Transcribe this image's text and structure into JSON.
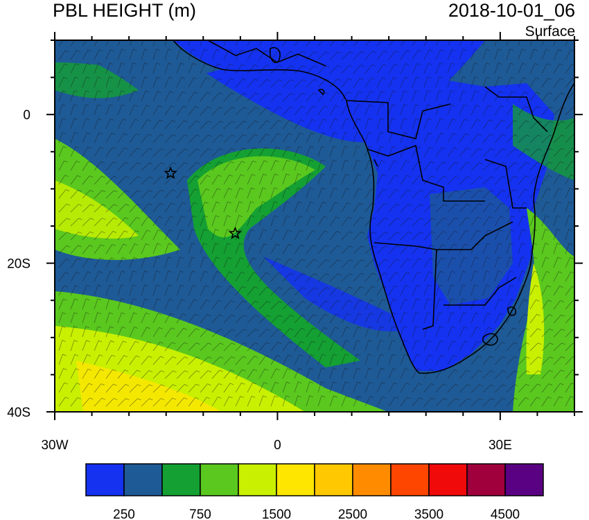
{
  "title_left": "PBL HEIGHT (m)",
  "title_right": "2018-10-01_06",
  "subtitle": "Surface",
  "map": {
    "lon_range": [
      -30,
      40
    ],
    "lat_range": [
      -40,
      10
    ],
    "lon_ticks": [
      {
        "value": -30,
        "label": "30W"
      },
      {
        "value": 0,
        "label": "0"
      },
      {
        "value": 30,
        "label": "30E"
      }
    ],
    "lat_ticks": [
      {
        "value": 0,
        "label": "0"
      },
      {
        "value": -20,
        "label": "20S"
      },
      {
        "value": -40,
        "label": "40S"
      }
    ],
    "markers": [
      {
        "lon": -14.4,
        "lat": -7.9,
        "symbol": "star"
      },
      {
        "lon": -5.7,
        "lat": -16.0,
        "symbol": "star"
      }
    ]
  },
  "colorbar": {
    "colors": [
      "#1432f0",
      "#1e5a96",
      "#14a032",
      "#5ac81e",
      "#c8f000",
      "#ffe600",
      "#ffc800",
      "#ff8c00",
      "#ff4600",
      "#f00a0a",
      "#a0003c",
      "#5a0082"
    ],
    "labels": [
      "250",
      "750",
      "1500",
      "2500",
      "3500",
      "4500"
    ]
  }
}
